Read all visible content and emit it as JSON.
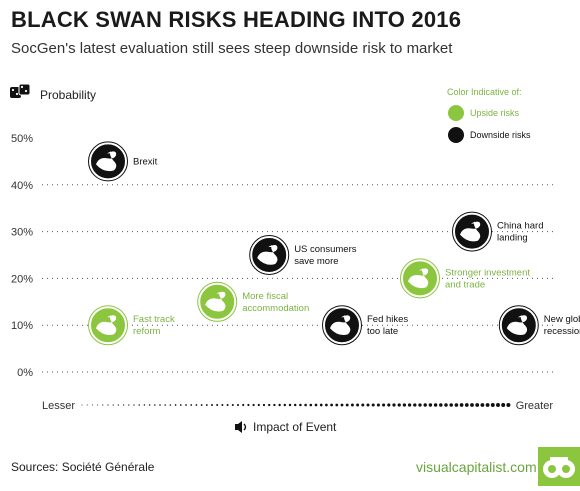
{
  "title": "BLACK SWAN RISKS HEADING INTO 2016",
  "subtitle": "SocGen's latest evaluation still sees steep downside risk to market",
  "colors": {
    "upside": "#8cc63f",
    "downside": "#111111",
    "upside_text": "#7cb342",
    "grid": "#555555"
  },
  "chart_data": {
    "type": "scatter",
    "ylabel": "Probability",
    "xlabel": "Impact of Event",
    "x_axis_ends": [
      "Lesser",
      "Greater"
    ],
    "ylim": [
      0,
      50
    ],
    "y_ticks": [
      "0%",
      "10%",
      "20%",
      "30%",
      "40%",
      "50%"
    ],
    "grid": true,
    "legend": {
      "title": "Color Indicative of:",
      "placement": "top-right",
      "entries": [
        {
          "label": "Upside risks",
          "kind": "upside"
        },
        {
          "label": "Downside risks",
          "kind": "downside"
        }
      ]
    },
    "points": [
      {
        "label": "Brexit",
        "impact": 1.5,
        "probability": 45,
        "kind": "downside"
      },
      {
        "label": "China hard landing",
        "impact": 8.5,
        "probability": 30,
        "kind": "downside"
      },
      {
        "label": "US consumers save more",
        "impact": 4.6,
        "probability": 25,
        "kind": "downside"
      },
      {
        "label": "Stronger investment and trade",
        "impact": 7.5,
        "probability": 20,
        "kind": "upside"
      },
      {
        "label": "More fiscal accommodation",
        "impact": 3.6,
        "probability": 15,
        "kind": "upside"
      },
      {
        "label": "Fast track reform",
        "impact": 1.5,
        "probability": 10,
        "kind": "upside"
      },
      {
        "label": "Fed hikes too late",
        "impact": 6.0,
        "probability": 10,
        "kind": "downside"
      },
      {
        "label": "New global recession",
        "impact": 9.4,
        "probability": 10,
        "kind": "downside"
      }
    ]
  },
  "footer": {
    "source": "Sources: Société Générale",
    "brand": "visualcapitalist.com"
  }
}
